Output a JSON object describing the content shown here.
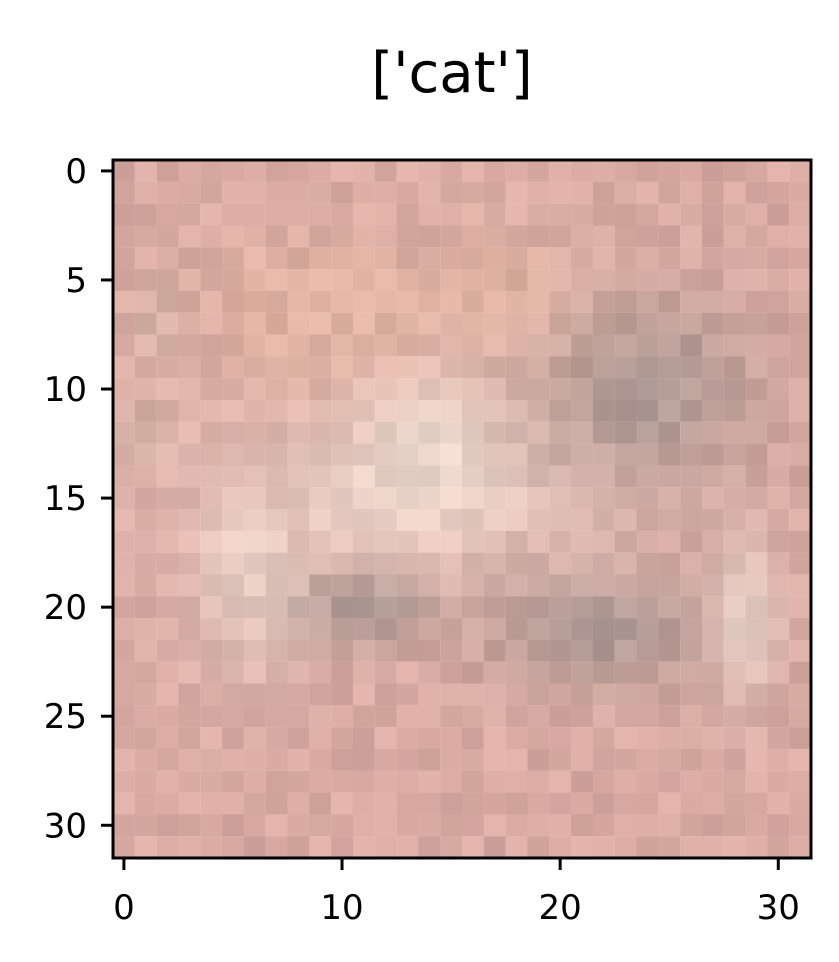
{
  "chart_data": {
    "type": "heatmap",
    "title": "['cat']",
    "xlabel": "",
    "ylabel": "",
    "xlim": [
      -0.5,
      31.5
    ],
    "ylim": [
      31.5,
      -0.5
    ],
    "x_ticks": [
      0,
      10,
      20,
      30
    ],
    "y_ticks": [
      0,
      5,
      10,
      15,
      20,
      25,
      30
    ],
    "x_tick_labels": [
      "0",
      "10",
      "20",
      "30"
    ],
    "y_tick_labels": [
      "0",
      "5",
      "10",
      "15",
      "20",
      "25",
      "30"
    ],
    "grid": false,
    "image_size": [
      32,
      32
    ],
    "dominant_colors": {
      "background": "#d8aaa2",
      "cat_light": "#f0ddd2",
      "shadow": "#8f8a88",
      "warm_highlight": "#efc3a4"
    }
  }
}
